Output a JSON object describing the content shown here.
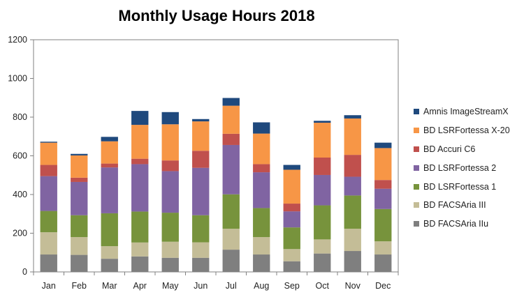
{
  "chart_data": {
    "type": "bar",
    "stacked": true,
    "title": "Monthly Usage Hours 2018",
    "xlabel": "",
    "ylabel": "",
    "ylim": [
      0,
      1200
    ],
    "yticks": [
      0,
      200,
      400,
      600,
      800,
      1000,
      1200
    ],
    "grid": false,
    "legend_position": "right",
    "categories": [
      "Jan",
      "Feb",
      "Mar",
      "Apr",
      "May",
      "Jun",
      "Jul",
      "Aug",
      "Sep",
      "Oct",
      "Nov",
      "Dec"
    ],
    "series": [
      {
        "name": "BD FACSAria IIu",
        "color": "#7f7f7f",
        "values": [
          90,
          88,
          68,
          80,
          73,
          73,
          115,
          90,
          55,
          95,
          108,
          90
        ]
      },
      {
        "name": "BD FACSAria III",
        "color": "#c4bd97",
        "values": [
          115,
          92,
          65,
          72,
          83,
          80,
          108,
          90,
          63,
          73,
          115,
          68
        ]
      },
      {
        "name": "BD LSRFortessa 1",
        "color": "#77933c",
        "values": [
          110,
          113,
          170,
          160,
          150,
          140,
          178,
          150,
          112,
          176,
          172,
          167
        ]
      },
      {
        "name": "BD LSRFortessa 2",
        "color": "#8064a2",
        "values": [
          180,
          172,
          237,
          245,
          215,
          245,
          255,
          185,
          83,
          157,
          97,
          105
        ]
      },
      {
        "name": "BD Accuri C6",
        "color": "#c0504d",
        "values": [
          58,
          22,
          20,
          28,
          55,
          88,
          58,
          42,
          40,
          90,
          113,
          45
        ]
      },
      {
        "name": "BD LSRFortessa X-20",
        "color": "#f79646",
        "values": [
          115,
          115,
          115,
          175,
          187,
          152,
          145,
          158,
          175,
          180,
          188,
          165
        ]
      },
      {
        "name": "Amnis ImageStreamX",
        "color": "#1f497d",
        "values": [
          5,
          8,
          23,
          72,
          63,
          12,
          40,
          58,
          25,
          10,
          17,
          28
        ]
      }
    ]
  }
}
